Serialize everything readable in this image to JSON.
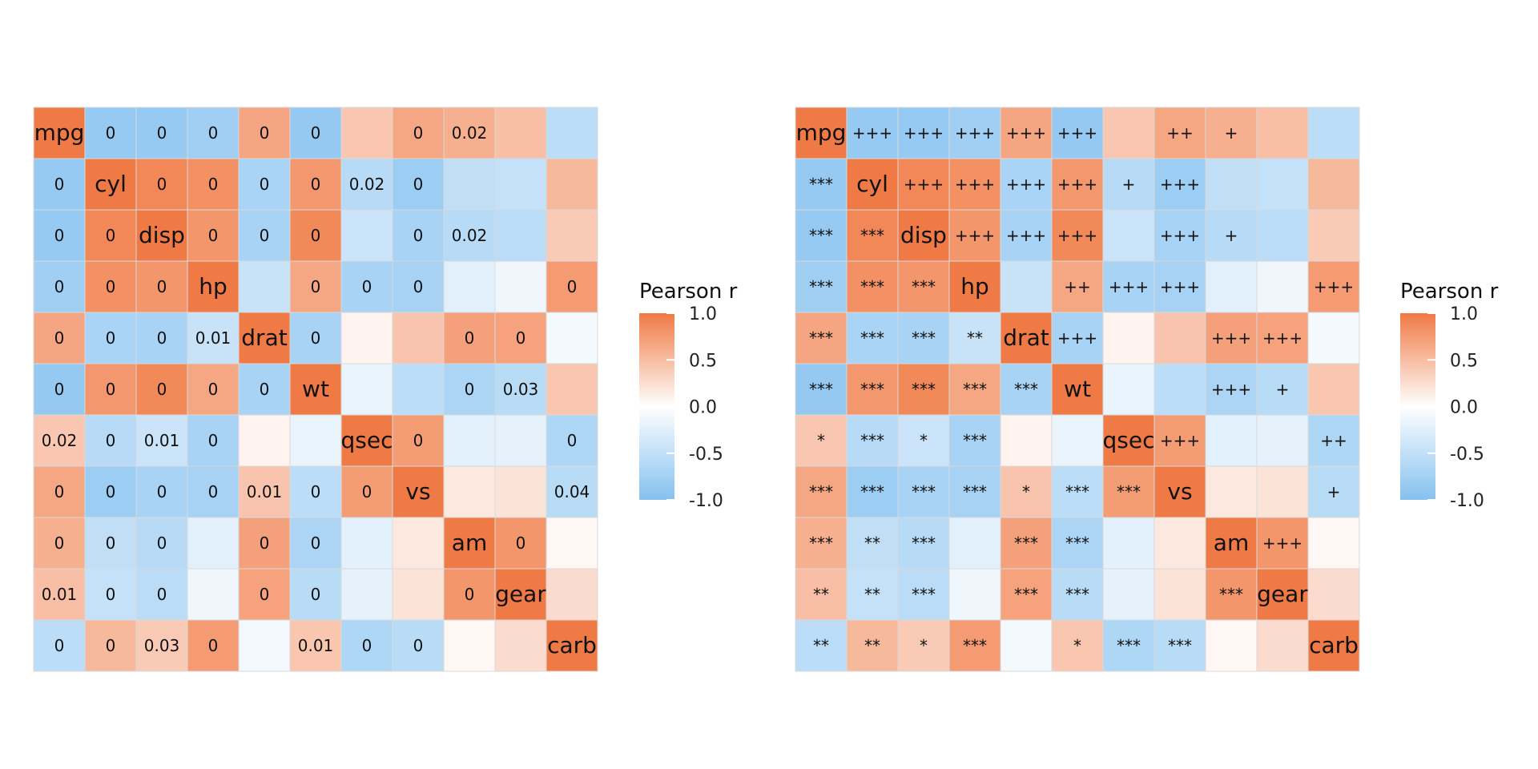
{
  "chart_data": [
    {
      "type": "heatmap",
      "variables": [
        "mpg",
        "cyl",
        "disp",
        "hp",
        "drat",
        "wt",
        "qsec",
        "vs",
        "am",
        "gear",
        "carb"
      ],
      "value_name": "Pearson r",
      "color_scale": {
        "low": "#85C1F0",
        "mid": "#FFFFFF",
        "high": "#F07A45",
        "range": [
          -1,
          1
        ]
      },
      "legend": {
        "title": "Pearson r",
        "ticks": [
          "1.0",
          "0.5",
          "0.0",
          "-0.5",
          "-1.0"
        ],
        "position": "right"
      },
      "r_matrix": [
        [
          1,
          -0.85,
          -0.85,
          -0.78,
          0.68,
          -0.87,
          0.42,
          0.66,
          0.6,
          0.48,
          -0.55
        ],
        [
          -0.85,
          1,
          0.9,
          0.83,
          -0.7,
          0.78,
          -0.59,
          -0.81,
          -0.52,
          -0.49,
          0.53
        ],
        [
          -0.85,
          0.9,
          1,
          0.79,
          -0.71,
          0.89,
          -0.43,
          -0.71,
          -0.59,
          -0.56,
          0.39
        ],
        [
          -0.78,
          0.83,
          0.79,
          1,
          -0.45,
          0.66,
          -0.71,
          -0.72,
          -0.24,
          -0.13,
          0.75
        ],
        [
          0.68,
          -0.7,
          -0.71,
          -0.45,
          1,
          -0.71,
          0.09,
          0.44,
          0.71,
          0.7,
          -0.09
        ],
        [
          -0.87,
          0.78,
          0.89,
          0.66,
          -0.71,
          1,
          -0.17,
          -0.55,
          -0.69,
          -0.58,
          0.43
        ],
        [
          0.42,
          -0.59,
          -0.43,
          -0.71,
          0.09,
          -0.17,
          1,
          0.74,
          -0.23,
          -0.21,
          -0.66
        ],
        [
          0.66,
          -0.81,
          -0.71,
          -0.72,
          0.44,
          -0.55,
          0.74,
          1,
          0.17,
          0.21,
          -0.57
        ],
        [
          0.6,
          -0.52,
          -0.59,
          -0.24,
          0.71,
          -0.69,
          -0.23,
          0.17,
          1,
          0.79,
          0.06
        ],
        [
          0.48,
          -0.49,
          -0.56,
          -0.13,
          0.7,
          -0.58,
          -0.21,
          0.21,
          0.79,
          1,
          0.27
        ],
        [
          -0.55,
          0.53,
          0.39,
          0.75,
          -0.09,
          0.43,
          -0.66,
          -0.57,
          0.06,
          0.27,
          1
        ]
      ],
      "cell_labels": [
        [
          "mpg",
          "0",
          "0",
          "0",
          "0",
          "0",
          "",
          "0",
          "0.02",
          "",
          ""
        ],
        [
          "0",
          "cyl",
          "0",
          "0",
          "0",
          "0",
          "0.02",
          "0",
          "",
          "",
          ""
        ],
        [
          "0",
          "0",
          "disp",
          "0",
          "0",
          "0",
          "",
          "0",
          "0.02",
          "",
          ""
        ],
        [
          "0",
          "0",
          "0",
          "hp",
          "",
          "0",
          "0",
          "0",
          "",
          "",
          "0"
        ],
        [
          "0",
          "0",
          "0",
          "0.01",
          "drat",
          "0",
          "",
          "",
          "0",
          "0",
          ""
        ],
        [
          "0",
          "0",
          "0",
          "0",
          "0",
          "wt",
          "",
          "",
          "0",
          "0.03",
          ""
        ],
        [
          "0.02",
          "0",
          "0.01",
          "0",
          "",
          "",
          "qsec",
          "0",
          "",
          "",
          "0"
        ],
        [
          "0",
          "0",
          "0",
          "0",
          "0.01",
          "0",
          "0",
          "vs",
          "",
          "",
          "0.04"
        ],
        [
          "0",
          "0",
          "0",
          "",
          "0",
          "0",
          "",
          "",
          "am",
          "0",
          ""
        ],
        [
          "0.01",
          "0",
          "0",
          "",
          "0",
          "0",
          "",
          "",
          "0",
          "gear",
          ""
        ],
        [
          "0",
          "0",
          "0.03",
          "0",
          "",
          "0.01",
          "0",
          "0",
          "",
          "",
          "carb"
        ]
      ]
    },
    {
      "type": "heatmap",
      "variables": [
        "mpg",
        "cyl",
        "disp",
        "hp",
        "drat",
        "wt",
        "qsec",
        "vs",
        "am",
        "gear",
        "carb"
      ],
      "value_name": "Pearson r",
      "color_scale": {
        "low": "#85C1F0",
        "mid": "#FFFFFF",
        "high": "#F07A45",
        "range": [
          -1,
          1
        ]
      },
      "legend": {
        "title": "Pearson r",
        "ticks": [
          "1.0",
          "0.5",
          "0.0",
          "-0.5",
          "-1.0"
        ],
        "position": "right"
      },
      "r_matrix": [
        [
          1,
          -0.85,
          -0.85,
          -0.78,
          0.68,
          -0.87,
          0.42,
          0.66,
          0.6,
          0.48,
          -0.55
        ],
        [
          -0.85,
          1,
          0.9,
          0.83,
          -0.7,
          0.78,
          -0.59,
          -0.81,
          -0.52,
          -0.49,
          0.53
        ],
        [
          -0.85,
          0.9,
          1,
          0.79,
          -0.71,
          0.89,
          -0.43,
          -0.71,
          -0.59,
          -0.56,
          0.39
        ],
        [
          -0.78,
          0.83,
          0.79,
          1,
          -0.45,
          0.66,
          -0.71,
          -0.72,
          -0.24,
          -0.13,
          0.75
        ],
        [
          0.68,
          -0.7,
          -0.71,
          -0.45,
          1,
          -0.71,
          0.09,
          0.44,
          0.71,
          0.7,
          -0.09
        ],
        [
          -0.87,
          0.78,
          0.89,
          0.66,
          -0.71,
          1,
          -0.17,
          -0.55,
          -0.69,
          -0.58,
          0.43
        ],
        [
          0.42,
          -0.59,
          -0.43,
          -0.71,
          0.09,
          -0.17,
          1,
          0.74,
          -0.23,
          -0.21,
          -0.66
        ],
        [
          0.66,
          -0.81,
          -0.71,
          -0.72,
          0.44,
          -0.55,
          0.74,
          1,
          0.17,
          0.21,
          -0.57
        ],
        [
          0.6,
          -0.52,
          -0.59,
          -0.24,
          0.71,
          -0.69,
          -0.23,
          0.17,
          1,
          0.79,
          0.06
        ],
        [
          0.48,
          -0.49,
          -0.56,
          -0.13,
          0.7,
          -0.58,
          -0.21,
          0.21,
          0.79,
          1,
          0.27
        ],
        [
          -0.55,
          0.53,
          0.39,
          0.75,
          -0.09,
          0.43,
          -0.66,
          -0.57,
          0.06,
          0.27,
          1
        ]
      ],
      "cell_labels": [
        [
          "mpg",
          "+++",
          "+++",
          "+++",
          "+++",
          "+++",
          "",
          "++",
          "+",
          "",
          ""
        ],
        [
          "***",
          "cyl",
          "+++",
          "+++",
          "+++",
          "+++",
          "+",
          "+++",
          "",
          "",
          ""
        ],
        [
          "***",
          "***",
          "disp",
          "+++",
          "+++",
          "+++",
          "",
          "+++",
          "+",
          "",
          ""
        ],
        [
          "***",
          "***",
          "***",
          "hp",
          "",
          "++",
          "+++",
          "+++",
          "",
          "",
          "+++"
        ],
        [
          "***",
          "***",
          "***",
          "**",
          "drat",
          "+++",
          "",
          "",
          "+++",
          "+++",
          ""
        ],
        [
          "***",
          "***",
          "***",
          "***",
          "***",
          "wt",
          "",
          "",
          "+++",
          "+",
          ""
        ],
        [
          "*",
          "***",
          "*",
          "***",
          "",
          "",
          "qsec",
          "+++",
          "",
          "",
          "++"
        ],
        [
          "***",
          "***",
          "***",
          "***",
          "*",
          "***",
          "***",
          "vs",
          "",
          "",
          "+"
        ],
        [
          "***",
          "**",
          "***",
          "",
          "***",
          "***",
          "",
          "",
          "am",
          "+++",
          ""
        ],
        [
          "**",
          "**",
          "***",
          "",
          "***",
          "***",
          "",
          "",
          "***",
          "gear",
          ""
        ],
        [
          "**",
          "**",
          "*",
          "***",
          "",
          "*",
          "***",
          "***",
          "",
          "",
          "carb"
        ]
      ]
    }
  ]
}
